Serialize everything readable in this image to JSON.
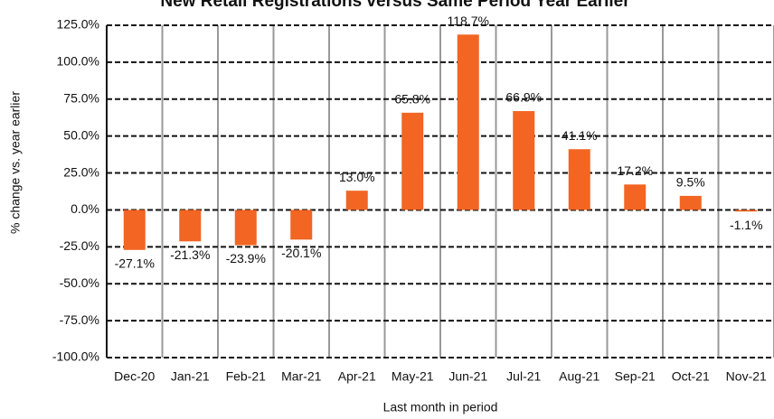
{
  "chart_data": {
    "type": "bar",
    "title": "New Retail Registrations versus Same Period Year Earlier",
    "y_label": "% change vs. year earlier",
    "x_label": "Last month in period",
    "categories": [
      "Dec-20",
      "Jan-21",
      "Feb-21",
      "Mar-21",
      "Apr-21",
      "May-21",
      "Jun-21",
      "Jul-21",
      "Aug-21",
      "Sep-21",
      "Oct-21",
      "Nov-21"
    ],
    "values": [
      -27.1,
      -21.3,
      -23.9,
      -20.1,
      13.0,
      65.8,
      118.7,
      66.9,
      41.1,
      17.2,
      9.5,
      -1.1
    ],
    "value_labels": [
      "-27.1%",
      "-21.3%",
      "-23.9%",
      "-20.1%",
      "13.0%",
      "65.8%",
      "118.7%",
      "66.9%",
      "41.1%",
      "17.2%",
      "9.5%",
      "-1.1%"
    ],
    "color": "#f26522",
    "ylim": [
      -100,
      125
    ],
    "yticks": [
      {
        "value": -100,
        "label": "-100.0%"
      },
      {
        "value": -75,
        "label": "-75.0%"
      },
      {
        "value": -50,
        "label": "-50.0%"
      },
      {
        "value": -25,
        "label": "-25.0%"
      },
      {
        "value": 0,
        "label": "0.0%"
      },
      {
        "value": 25,
        "label": "25.0%"
      },
      {
        "value": 50,
        "label": "50.0%"
      },
      {
        "value": 75,
        "label": "75.0%"
      },
      {
        "value": 100,
        "label": "100.0%"
      },
      {
        "value": 125,
        "label": "125.0%"
      }
    ],
    "grid": true
  }
}
